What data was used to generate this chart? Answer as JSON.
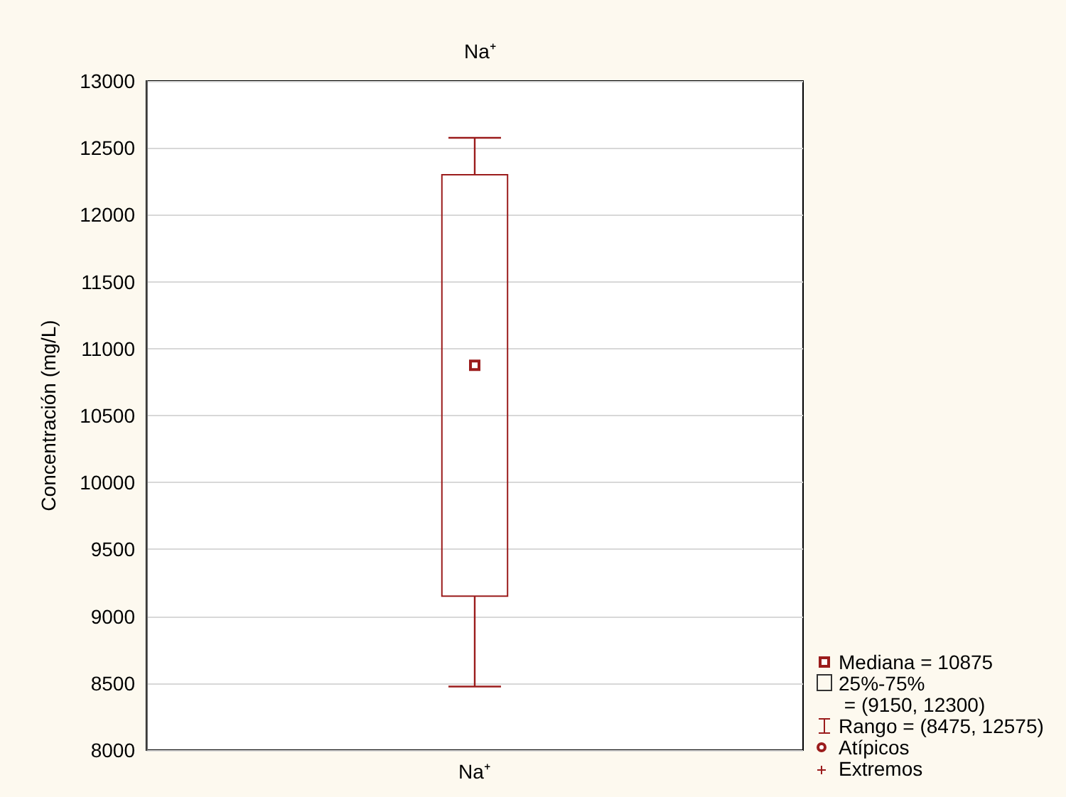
{
  "chart_data": {
    "type": "box",
    "title": "Na⁺",
    "ylabel": "Concentración (mg/L)",
    "categories": [
      "Na⁺"
    ],
    "series": [
      {
        "color": "#9b1c1c",
        "boxes": [
          {
            "low": 8475,
            "q1": 9150,
            "median": 10875,
            "q3": 12300,
            "high": 12575
          }
        ]
      }
    ],
    "ylim": [
      8000,
      13000
    ],
    "yticks": [
      8000,
      8500,
      9000,
      9500,
      10000,
      10500,
      11000,
      11500,
      12000,
      12500,
      13000
    ],
    "grid": "y",
    "marker": "square",
    "annotations": [
      "Mediana = 10875",
      "25%-75%\n = (9150, 12300)",
      "Rango = (8475, 12575)",
      "Atípicos",
      "Extremos"
    ]
  }
}
